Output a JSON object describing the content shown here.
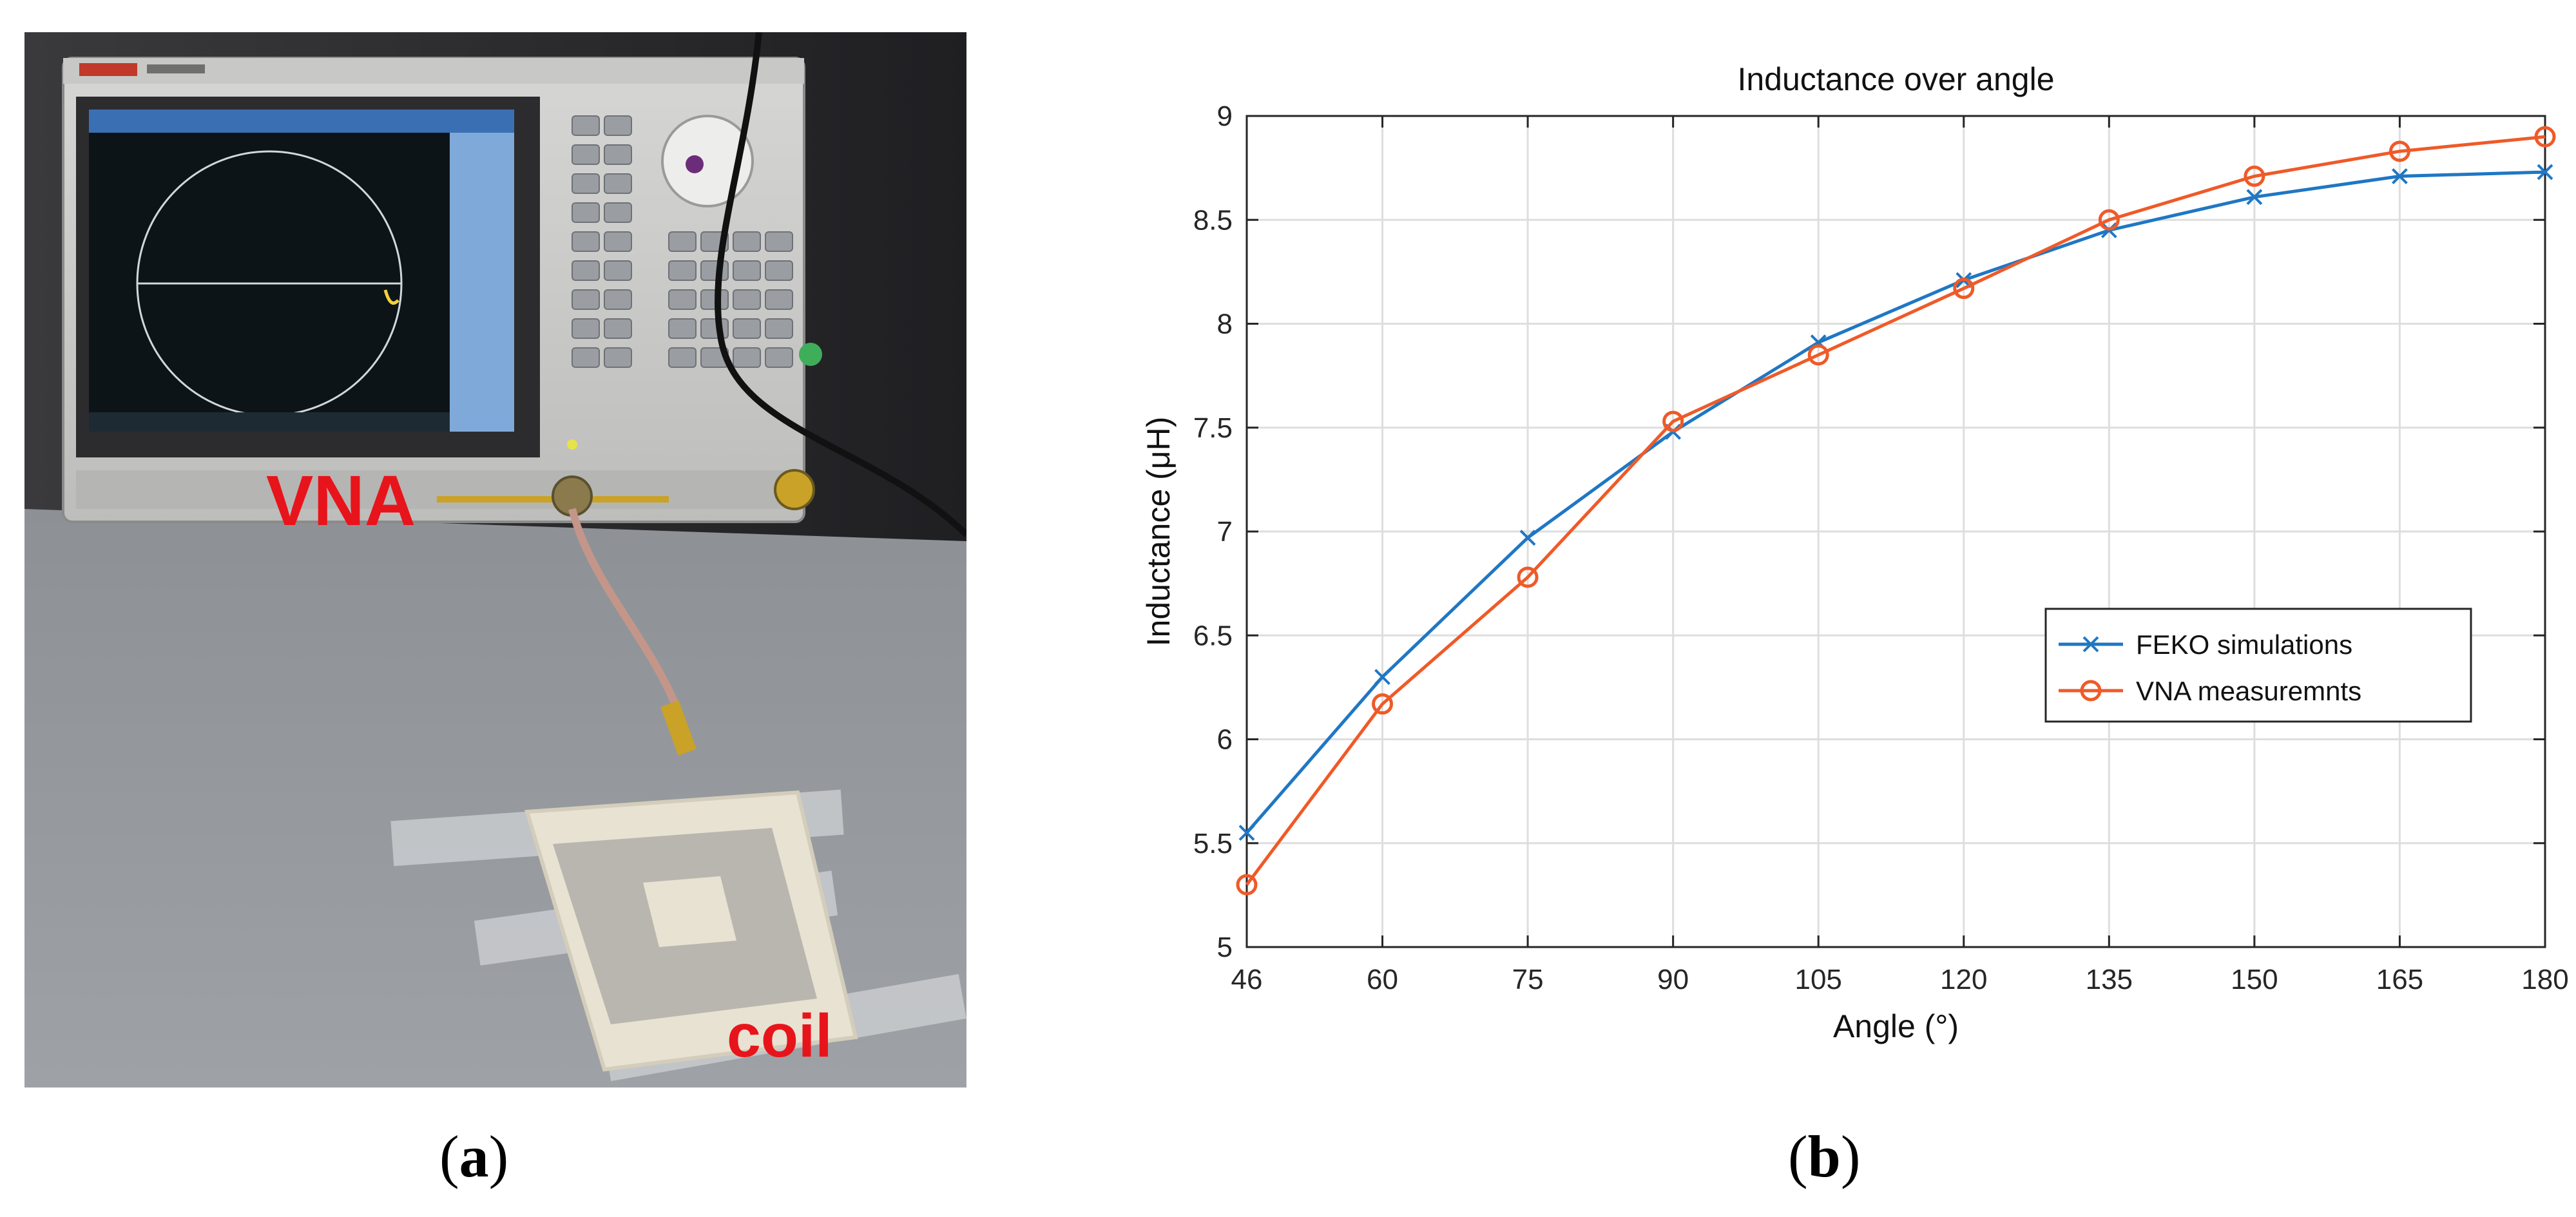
{
  "figure": {
    "panel_a": {
      "caption_open": "(",
      "caption_letter": "a",
      "caption_close": ")",
      "labels": {
        "vna": "VNA",
        "coil": "coil"
      },
      "label_color": "#e8141b"
    },
    "panel_b": {
      "caption_open": "(",
      "caption_letter": "b",
      "caption_close": ")"
    }
  },
  "chart_data": {
    "type": "line",
    "title": "Inductance over angle",
    "xlabel": "Angle (°)",
    "ylabel": "Inductance (μH)",
    "xlim": [
      46,
      180
    ],
    "ylim": [
      5,
      9
    ],
    "xticks": [
      46,
      60,
      75,
      90,
      105,
      120,
      135,
      150,
      165,
      180
    ],
    "yticks": [
      5,
      5.5,
      6,
      6.5,
      7,
      7.5,
      8,
      8.5,
      9
    ],
    "grid": true,
    "legend_position": "right",
    "x": [
      46,
      60,
      75,
      90,
      105,
      120,
      135,
      150,
      165,
      180
    ],
    "series": [
      {
        "name": "FEKO simulations",
        "color": "#1f77c4",
        "marker": "x",
        "values": [
          5.55,
          6.3,
          6.97,
          7.48,
          7.91,
          8.21,
          8.45,
          8.61,
          8.71,
          8.73
        ]
      },
      {
        "name": "VNA measuremnts",
        "color": "#ef5a28",
        "marker": "circle",
        "values": [
          5.3,
          6.17,
          6.78,
          7.53,
          7.85,
          8.17,
          8.5,
          8.71,
          8.83,
          8.9
        ]
      }
    ]
  }
}
